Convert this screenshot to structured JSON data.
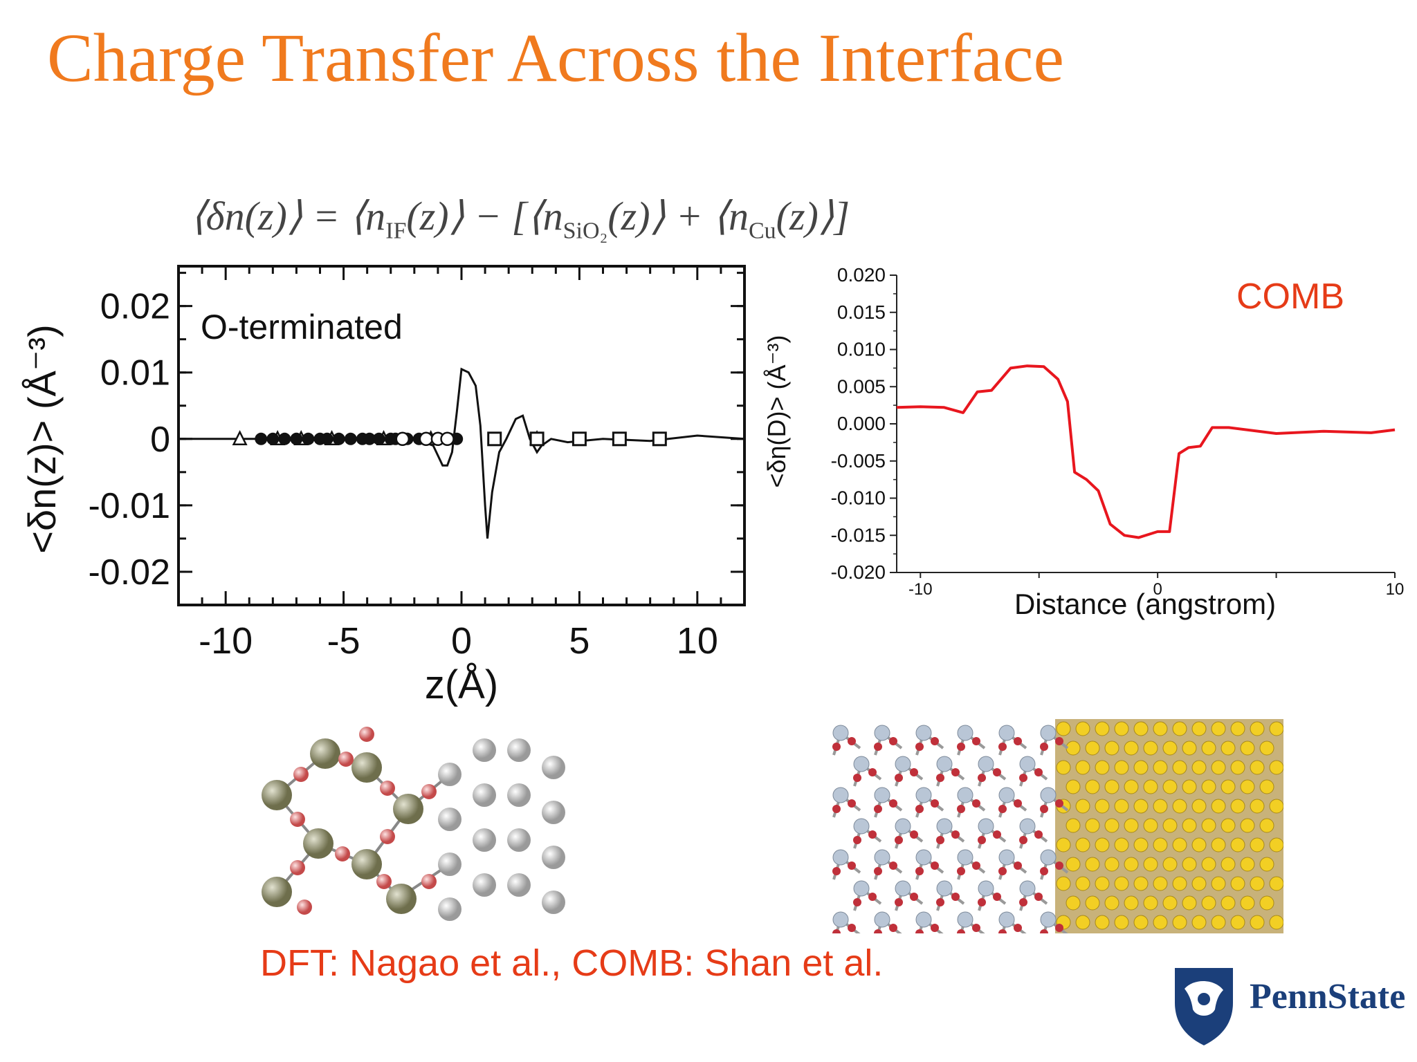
{
  "slide": {
    "title": "Charge Transfer Across the Interface",
    "formula": {
      "left": "⟨δn(z)⟩ = ⟨n",
      "sub_if": "IF",
      "mid1": "(z)⟩ − [⟨n",
      "sub_sio2": "SiO₂",
      "mid2": "(z)⟩ + ⟨n",
      "sub_cu": "Cu",
      "end": "(z)⟩]"
    },
    "citation": "DFT: Nagao et al., COMB: Shan et al.",
    "logo_text": "PennState"
  },
  "chart_data": [
    {
      "type": "line",
      "title": "",
      "annotation": "O-terminated",
      "xlabel": "z(Å)",
      "ylabel": "<δn(z)>  (Å⁻³)",
      "xlim": [
        -12,
        12
      ],
      "ylim": [
        -0.025,
        0.026
      ],
      "xticks": [
        -10,
        -5,
        0,
        5,
        10
      ],
      "yticks": [
        0.02,
        0.01,
        0,
        -0.01,
        -0.02
      ],
      "ytick_labels": [
        "0.02",
        "0.01",
        "0",
        "-0.01",
        "-0.02"
      ],
      "series": [
        {
          "values": [
            [
              -12,
              0
            ],
            [
              -2,
              0
            ],
            [
              -1.2,
              -0.001
            ],
            [
              -0.8,
              -0.004
            ],
            [
              -0.6,
              -0.004
            ],
            [
              -0.4,
              -0.002
            ],
            [
              -0.2,
              0.004
            ],
            [
              0,
              0.0105
            ],
            [
              0.3,
              0.01
            ],
            [
              0.6,
              0.008
            ],
            [
              0.8,
              0.002
            ],
            [
              1.0,
              -0.01
            ],
            [
              1.1,
              -0.015
            ],
            [
              1.3,
              -0.008
            ],
            [
              1.6,
              -0.002
            ],
            [
              1.9,
              0
            ],
            [
              2.3,
              0.003
            ],
            [
              2.6,
              0.0035
            ],
            [
              2.9,
              0
            ],
            [
              3.2,
              -0.002
            ],
            [
              3.4,
              -0.001
            ],
            [
              3.8,
              0
            ],
            [
              4.5,
              -0.0005
            ],
            [
              6,
              0
            ],
            [
              8,
              -0.0003
            ],
            [
              10,
              0.0005
            ],
            [
              12,
              0
            ]
          ]
        }
      ],
      "markers": {
        "filled_circle": [
          -8.5,
          -8.0,
          -7.5,
          -7.0,
          -6.5,
          -6.0,
          -5.7,
          -5.2,
          -4.7,
          -4.2,
          -3.9,
          -3.5,
          -3.0,
          -2.8,
          -2.3,
          -1.8,
          -0.5,
          -0.2
        ],
        "open_circle": [
          -2.5,
          -1.5,
          -1.0,
          -0.6
        ],
        "triangle": [
          -9.4,
          -7.8,
          -6.8,
          -5.5,
          -3.3,
          -1.3,
          3.2
        ],
        "open_square": [
          1.4,
          3.2,
          5.0,
          6.7,
          8.4
        ]
      }
    },
    {
      "type": "line",
      "title": "",
      "annotation": "COMB",
      "xlabel": "Distance (angstrom)",
      "ylabel": "<δη(D)> (Å⁻³)",
      "xlim": [
        -11,
        10
      ],
      "ylim": [
        -0.02,
        0.02
      ],
      "xticks": [
        -10,
        0,
        10
      ],
      "yticks": [
        0.02,
        0.015,
        0.01,
        0.005,
        0.0,
        -0.005,
        -0.01,
        -0.015,
        -0.02
      ],
      "ytick_labels": [
        "0.020",
        "0.015",
        "0.010",
        "0.005",
        "0.000",
        "-0.005",
        "-0.010",
        "-0.015",
        "-0.020"
      ],
      "line_color": "#e8161e",
      "series": [
        {
          "values": [
            [
              -11,
              0.0022
            ],
            [
              -10,
              0.0023
            ],
            [
              -9,
              0.0022
            ],
            [
              -8.2,
              0.0015
            ],
            [
              -7.6,
              0.0043
            ],
            [
              -7,
              0.0045
            ],
            [
              -6.2,
              0.0075
            ],
            [
              -5.5,
              0.0078
            ],
            [
              -4.8,
              0.0077
            ],
            [
              -4.2,
              0.006
            ],
            [
              -3.8,
              0.003
            ],
            [
              -3.5,
              -0.0065
            ],
            [
              -3,
              -0.0075
            ],
            [
              -2.5,
              -0.009
            ],
            [
              -2,
              -0.0135
            ],
            [
              -1.4,
              -0.015
            ],
            [
              -0.8,
              -0.0153
            ],
            [
              0,
              -0.0145
            ],
            [
              0.5,
              -0.0145
            ],
            [
              0.9,
              -0.004
            ],
            [
              1.3,
              -0.0032
            ],
            [
              1.8,
              -0.003
            ],
            [
              2.3,
              -0.0005
            ],
            [
              3,
              -0.0005
            ],
            [
              5,
              -0.0013
            ],
            [
              7,
              -0.001
            ],
            [
              9,
              -0.0012
            ],
            [
              10,
              -0.0008
            ]
          ]
        }
      ]
    }
  ]
}
